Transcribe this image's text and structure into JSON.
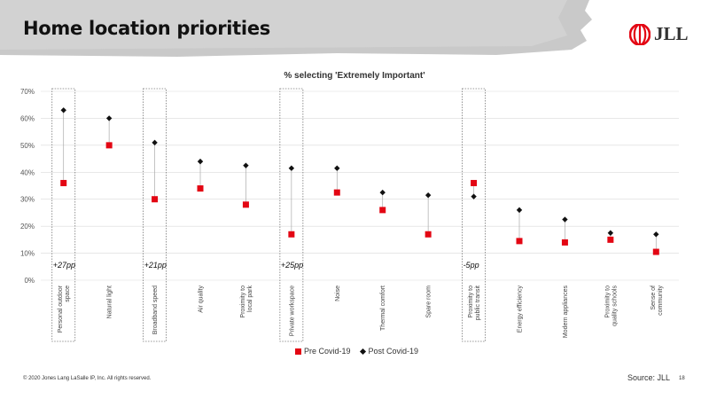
{
  "header": {
    "title": "Home location priorities",
    "logo_text": "JLL"
  },
  "footer": {
    "copyright": "© 2020 Jones Lang LaSalle IP, Inc. All rights reserved.",
    "source": "Source: JLL",
    "page_number": "18"
  },
  "legend": {
    "pre_label": "Pre Covid-19",
    "post_label": "Post Covid-19"
  },
  "colors": {
    "pre": "#e30613",
    "post": "#111111",
    "logo_red": "#e30613",
    "grid": "#d9d9d9",
    "highlight_box": "#777777"
  },
  "chart_data": {
    "type": "scatter",
    "title": "% selecting 'Extremely Important'",
    "ylim": [
      0,
      70
    ],
    "yticks": [
      "0%",
      "10%",
      "20%",
      "30%",
      "40%",
      "50%",
      "60%",
      "70%"
    ],
    "grid": true,
    "legend_position": "bottom",
    "categories": [
      "Personal outdoor space",
      "Natural light",
      "Broadband speed",
      "Air quality",
      "Proximity to local park",
      "Private workspace",
      "Noise",
      "Thermal comfort",
      "Spare room",
      "Proximity to public transit",
      "Energy efficiency",
      "Modern appliances",
      "Proximity to quality schools",
      "Sense of community"
    ],
    "series": [
      {
        "name": "Pre Covid-19",
        "marker": "square",
        "values": [
          36,
          50,
          30,
          34,
          28,
          17,
          32.5,
          26,
          17,
          36,
          14.5,
          14,
          15,
          10.5
        ]
      },
      {
        "name": "Post Covid-19",
        "marker": "diamond",
        "values": [
          63,
          60,
          51,
          44,
          42.5,
          41.5,
          41.5,
          32.5,
          31.5,
          31,
          26,
          22.5,
          17.5,
          17
        ]
      }
    ],
    "highlights": [
      {
        "category_index": 0,
        "label": "+27pp"
      },
      {
        "category_index": 2,
        "label": "+21pp"
      },
      {
        "category_index": 5,
        "label": "+25pp"
      },
      {
        "category_index": 9,
        "label": "-5pp"
      }
    ]
  }
}
